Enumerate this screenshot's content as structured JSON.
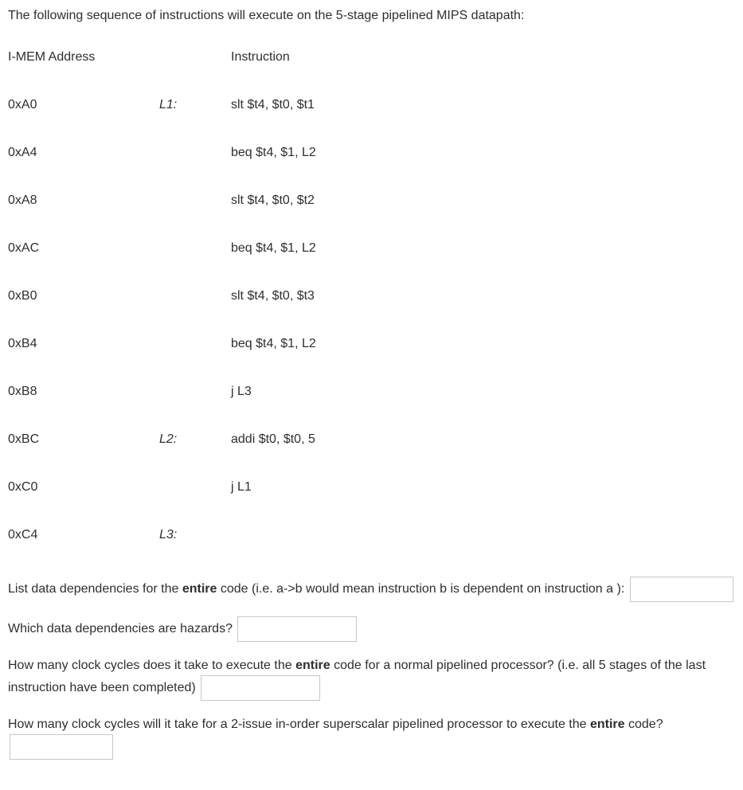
{
  "intro": "The following sequence of instructions will execute on the 5-stage pipelined MIPS datapath:",
  "headers": {
    "addr": "I-MEM Address",
    "instr": "Instruction"
  },
  "rows": [
    {
      "addr": "0xA0",
      "label": "L1:",
      "instr": "slt $t4, $t0, $t1"
    },
    {
      "addr": "0xA4",
      "label": "",
      "instr": "beq $t4, $1, L2"
    },
    {
      "addr": "0xA8",
      "label": "",
      "instr": "slt $t4, $t0, $t2"
    },
    {
      "addr": "0xAC",
      "label": "",
      "instr": "beq $t4, $1, L2"
    },
    {
      "addr": "0xB0",
      "label": "",
      "instr": "slt $t4, $t0, $t3"
    },
    {
      "addr": "0xB4",
      "label": "",
      "instr": "beq $t4, $1, L2"
    },
    {
      "addr": "0xB8",
      "label": "",
      "instr": "j L3"
    },
    {
      "addr": "0xBC",
      "label": "L2:",
      "instr": "addi $t0, $t0, 5"
    },
    {
      "addr": "0xC0",
      "label": "",
      "instr": "j L1"
    },
    {
      "addr": "0xC4",
      "label": "L3:",
      "instr": ""
    }
  ],
  "q1a": "List data dependencies for the ",
  "q1b": "entire",
  "q1c": " code (i.e. a->b would mean instruction b is dependent on instruction a ): ",
  "q2": "Which data dependencies are hazards? ",
  "q3a": "How many clock cycles does it take to execute the ",
  "q3b": "entire",
  "q3c": " code for a normal pipelined processor? (i.e. all 5 stages of the last instruction have been completed) ",
  "q4a": "How many clock cycles will it take for a 2-issue in-order superscalar pipelined processor to execute the ",
  "q4b": "entire",
  "q4c": " code?"
}
